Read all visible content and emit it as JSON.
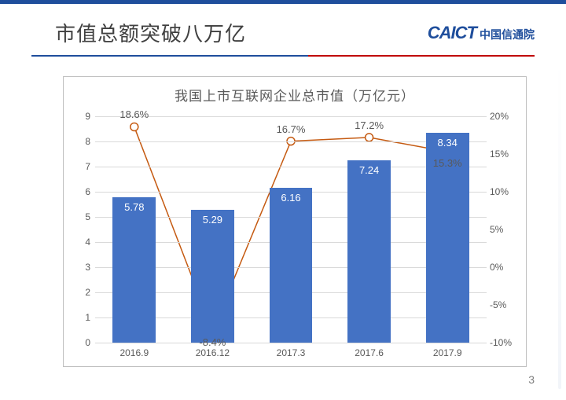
{
  "header": {
    "title": "市值总额突破八万亿",
    "brand_logo": "CAICT",
    "brand_cn": "中国信通院"
  },
  "page_number": "3",
  "chart": {
    "type": "bar+line",
    "title": "我国上市互联网企业总市值（万亿元）",
    "title_fontsize": 17,
    "background_color": "#ffffff",
    "border_color": "#bfbfbf",
    "grid_color": "#d9d9d9",
    "categories": [
      "2016.9",
      "2016.12",
      "2017.3",
      "2017.6",
      "2017.9"
    ],
    "bar": {
      "values": [
        5.78,
        5.29,
        6.16,
        7.24,
        8.34
      ],
      "labels": [
        "5.78",
        "5.29",
        "6.16",
        "7.24",
        "8.34"
      ],
      "color": "#4472c4",
      "label_color": "#ffffff",
      "label_fontsize": 13,
      "bar_width_ratio": 0.55,
      "y_axis": {
        "min": 0,
        "max": 9,
        "step": 1,
        "ticks": [
          "0",
          "1",
          "2",
          "3",
          "4",
          "5",
          "6",
          "7",
          "8",
          "9"
        ],
        "fontsize": 12,
        "color": "#595959"
      }
    },
    "line": {
      "values_pct": [
        18.6,
        -8.4,
        16.7,
        17.2,
        15.3
      ],
      "labels": [
        "18.6%",
        "-8.4%",
        "16.7%",
        "17.2%",
        "15.3%"
      ],
      "stroke_color": "#c55a11",
      "stroke_width": 1.5,
      "marker_fill": "#ffffff",
      "marker_stroke": "#c55a11",
      "marker_radius": 5,
      "label_color": "#595959",
      "label_fontsize": 13,
      "y_axis": {
        "min": -10,
        "max": 20,
        "step": 5,
        "ticks": [
          "-10%",
          "-5%",
          "0%",
          "5%",
          "10%",
          "15%",
          "20%"
        ],
        "fontsize": 12,
        "color": "#595959"
      }
    },
    "x_axis": {
      "fontsize": 12,
      "color": "#595959"
    }
  }
}
